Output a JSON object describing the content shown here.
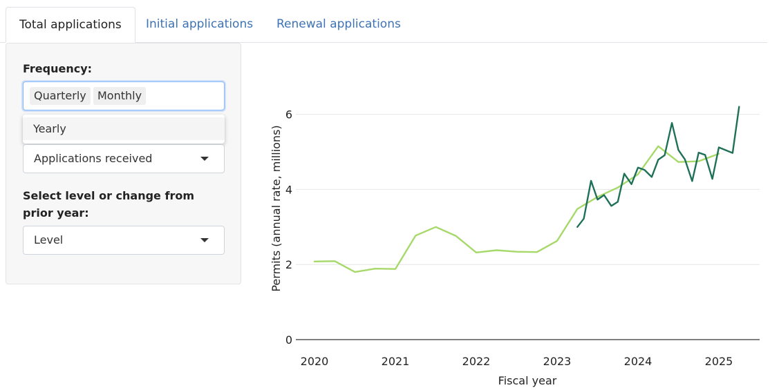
{
  "tabs": [
    {
      "label": "Total applications",
      "active": true
    },
    {
      "label": "Initial applications",
      "active": false
    },
    {
      "label": "Renewal applications",
      "active": false
    }
  ],
  "sidebar": {
    "frequency_label": "Frequency:",
    "frequency_selected": [
      "Quarterly",
      "Monthly"
    ],
    "frequency_dropdown_options": [
      "Yearly"
    ],
    "measure_value": "Applications received",
    "level_label": "Select level or change from prior year:",
    "level_value": "Level"
  },
  "colors": {
    "quarterly": "#a6d96a",
    "monthly": "#1f7058",
    "accent": "#3d72b4"
  },
  "chart_data": {
    "type": "line",
    "xlabel": "Fiscal year",
    "ylabel": "Permits (annual rate, millions)",
    "xlim": [
      2019.98,
      2025.5
    ],
    "ylim": [
      0,
      7
    ],
    "xticks": [
      2020,
      2021,
      2022,
      2023,
      2024,
      2025
    ],
    "yticks": [
      0,
      2,
      4,
      6
    ],
    "grid": "horizontal",
    "series": [
      {
        "color": "#a6d96a",
        "x": [
          2020.0,
          2020.25,
          2020.5,
          2020.75,
          2021.0,
          2021.25,
          2021.5,
          2021.75,
          2022.0,
          2022.25,
          2022.5,
          2022.75,
          2023.0,
          2023.25,
          2023.5,
          2023.75,
          2024.0,
          2024.25,
          2024.5,
          2024.75,
          2025.0
        ],
        "y": [
          2.08,
          2.09,
          1.8,
          1.89,
          1.88,
          2.77,
          3.0,
          2.76,
          2.32,
          2.38,
          2.34,
          2.33,
          2.63,
          3.48,
          3.8,
          4.05,
          4.4,
          5.15,
          4.73,
          4.75,
          4.95
        ]
      },
      {
        "color": "#1f7058",
        "x": [
          2023.25,
          2023.33,
          2023.42,
          2023.5,
          2023.58,
          2023.67,
          2023.75,
          2023.83,
          2023.92,
          2024.0,
          2024.08,
          2024.17,
          2024.25,
          2024.33,
          2024.42,
          2024.5,
          2024.58,
          2024.67,
          2024.75,
          2024.83,
          2024.92,
          2025.0,
          2025.17,
          2025.25
        ],
        "y": [
          3.0,
          3.22,
          4.23,
          3.73,
          3.85,
          3.56,
          3.67,
          4.42,
          4.14,
          4.58,
          4.52,
          4.33,
          4.79,
          4.91,
          5.77,
          5.05,
          4.8,
          4.22,
          4.98,
          4.92,
          4.28,
          5.12,
          4.97,
          6.2
        ]
      }
    ]
  }
}
